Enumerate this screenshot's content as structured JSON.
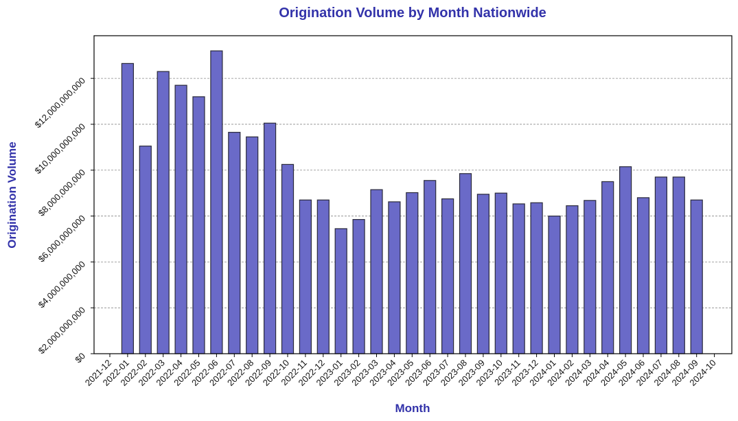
{
  "chart_data": {
    "type": "bar",
    "title": "Origination Volume by Month Nationwide",
    "xlabel": "Month",
    "ylabel": "Origination Volume",
    "x_tick_labels": [
      "2021-12",
      "2022-01",
      "2022-02",
      "2022-03",
      "2022-04",
      "2022-05",
      "2022-06",
      "2022-07",
      "2022-08",
      "2022-09",
      "2022-10",
      "2022-11",
      "2022-12",
      "2023-01",
      "2023-02",
      "2023-03",
      "2023-04",
      "2023-05",
      "2023-06",
      "2023-07",
      "2023-08",
      "2023-09",
      "2023-10",
      "2023-11",
      "2023-12",
      "2024-01",
      "2024-02",
      "2024-03",
      "2024-04",
      "2024-05",
      "2024-06",
      "2024-07",
      "2024-08",
      "2024-09",
      "2024-10"
    ],
    "categories": [
      "2022-01",
      "2022-02",
      "2022-03",
      "2022-04",
      "2022-05",
      "2022-06",
      "2022-07",
      "2022-08",
      "2022-09",
      "2022-10",
      "2022-11",
      "2022-12",
      "2023-01",
      "2023-02",
      "2023-03",
      "2023-04",
      "2023-05",
      "2023-06",
      "2023-07",
      "2023-08",
      "2023-09",
      "2023-10",
      "2023-11",
      "2023-12",
      "2024-01",
      "2024-02",
      "2024-03",
      "2024-04",
      "2024-05",
      "2024-06",
      "2024-07",
      "2024-08",
      "2024-09"
    ],
    "values": [
      12650000000,
      9050000000,
      12300000000,
      11700000000,
      11200000000,
      13200000000,
      9650000000,
      9450000000,
      10050000000,
      8250000000,
      6700000000,
      6700000000,
      5450000000,
      5850000000,
      7150000000,
      6620000000,
      7020000000,
      7550000000,
      6750000000,
      7850000000,
      6950000000,
      7000000000,
      6530000000,
      6580000000,
      6000000000,
      6450000000,
      6680000000,
      7500000000,
      8150000000,
      6800000000,
      7700000000,
      7700000000,
      6700000000
    ],
    "y_tick_values": [
      0,
      2000000000,
      4000000000,
      6000000000,
      8000000000,
      10000000000,
      12000000000
    ],
    "y_tick_labels": [
      "$0",
      "$2,000,000,000",
      "$4,000,000,000",
      "$6,000,000,000",
      "$8,000,000,000",
      "$10,000,000,000",
      "$12,000,000,000"
    ],
    "ylim": [
      0,
      13860000000
    ],
    "grid": "horizontal-dashed",
    "bar_color": "#6a6ac8",
    "edge_color": "#2a2a3a",
    "title_color": "#3333aa"
  }
}
